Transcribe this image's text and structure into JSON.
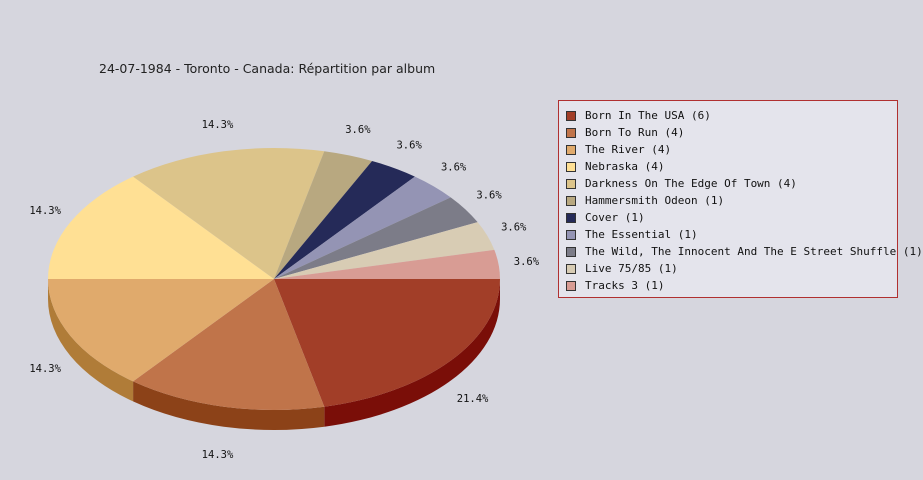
{
  "chart_data": {
    "type": "pie",
    "title": "24-07-1984 - Toronto - Canada:  Répartition par album",
    "slices": [
      {
        "label": "Born In The USA (6)",
        "value": 6,
        "percent_label": "21.4%",
        "color": "#a23e28",
        "side": "#7a0e08"
      },
      {
        "label": "Born To Run (4)",
        "value": 4,
        "percent_label": "14.3%",
        "color": "#c0744a",
        "side": "#8c4218"
      },
      {
        "label": "The River (4)",
        "value": 4,
        "percent_label": "14.3%",
        "color": "#e0aa6c",
        "side": "#b07c38"
      },
      {
        "label": "Nebraska (4)",
        "value": 4,
        "percent_label": "14.3%",
        "color": "#ffe094",
        "side": "#c8a864"
      },
      {
        "label": "Darkness On The Edge Of Town (4)",
        "value": 4,
        "percent_label": "14.3%",
        "color": "#dcc48a",
        "side": "#a89458"
      },
      {
        "label": "Hammersmith Odeon  (1)",
        "value": 1,
        "percent_label": "3.6%",
        "color": "#b8a880",
        "side": "#887850"
      },
      {
        "label": "Cover (1)",
        "value": 1,
        "percent_label": "3.6%",
        "color": "#252a58",
        "side": "#101230"
      },
      {
        "label": "The Essential (1)",
        "value": 1,
        "percent_label": "3.6%",
        "color": "#9494b4",
        "side": "#606080"
      },
      {
        "label": "The Wild, The Innocent And The E Street Shuffle (1)",
        "value": 1,
        "percent_label": "3.6%",
        "color": "#7c7c88",
        "side": "#50505c"
      },
      {
        "label": "Live 75/85 (1)",
        "value": 1,
        "percent_label": "3.6%",
        "color": "#d8ccb4",
        "side": "#a89c84"
      },
      {
        "label": "Tracks 3 (1)",
        "value": 1,
        "percent_label": "3.6%",
        "color": "#d89c94",
        "side": "#a86c64"
      }
    ],
    "legend_placement": "right"
  }
}
